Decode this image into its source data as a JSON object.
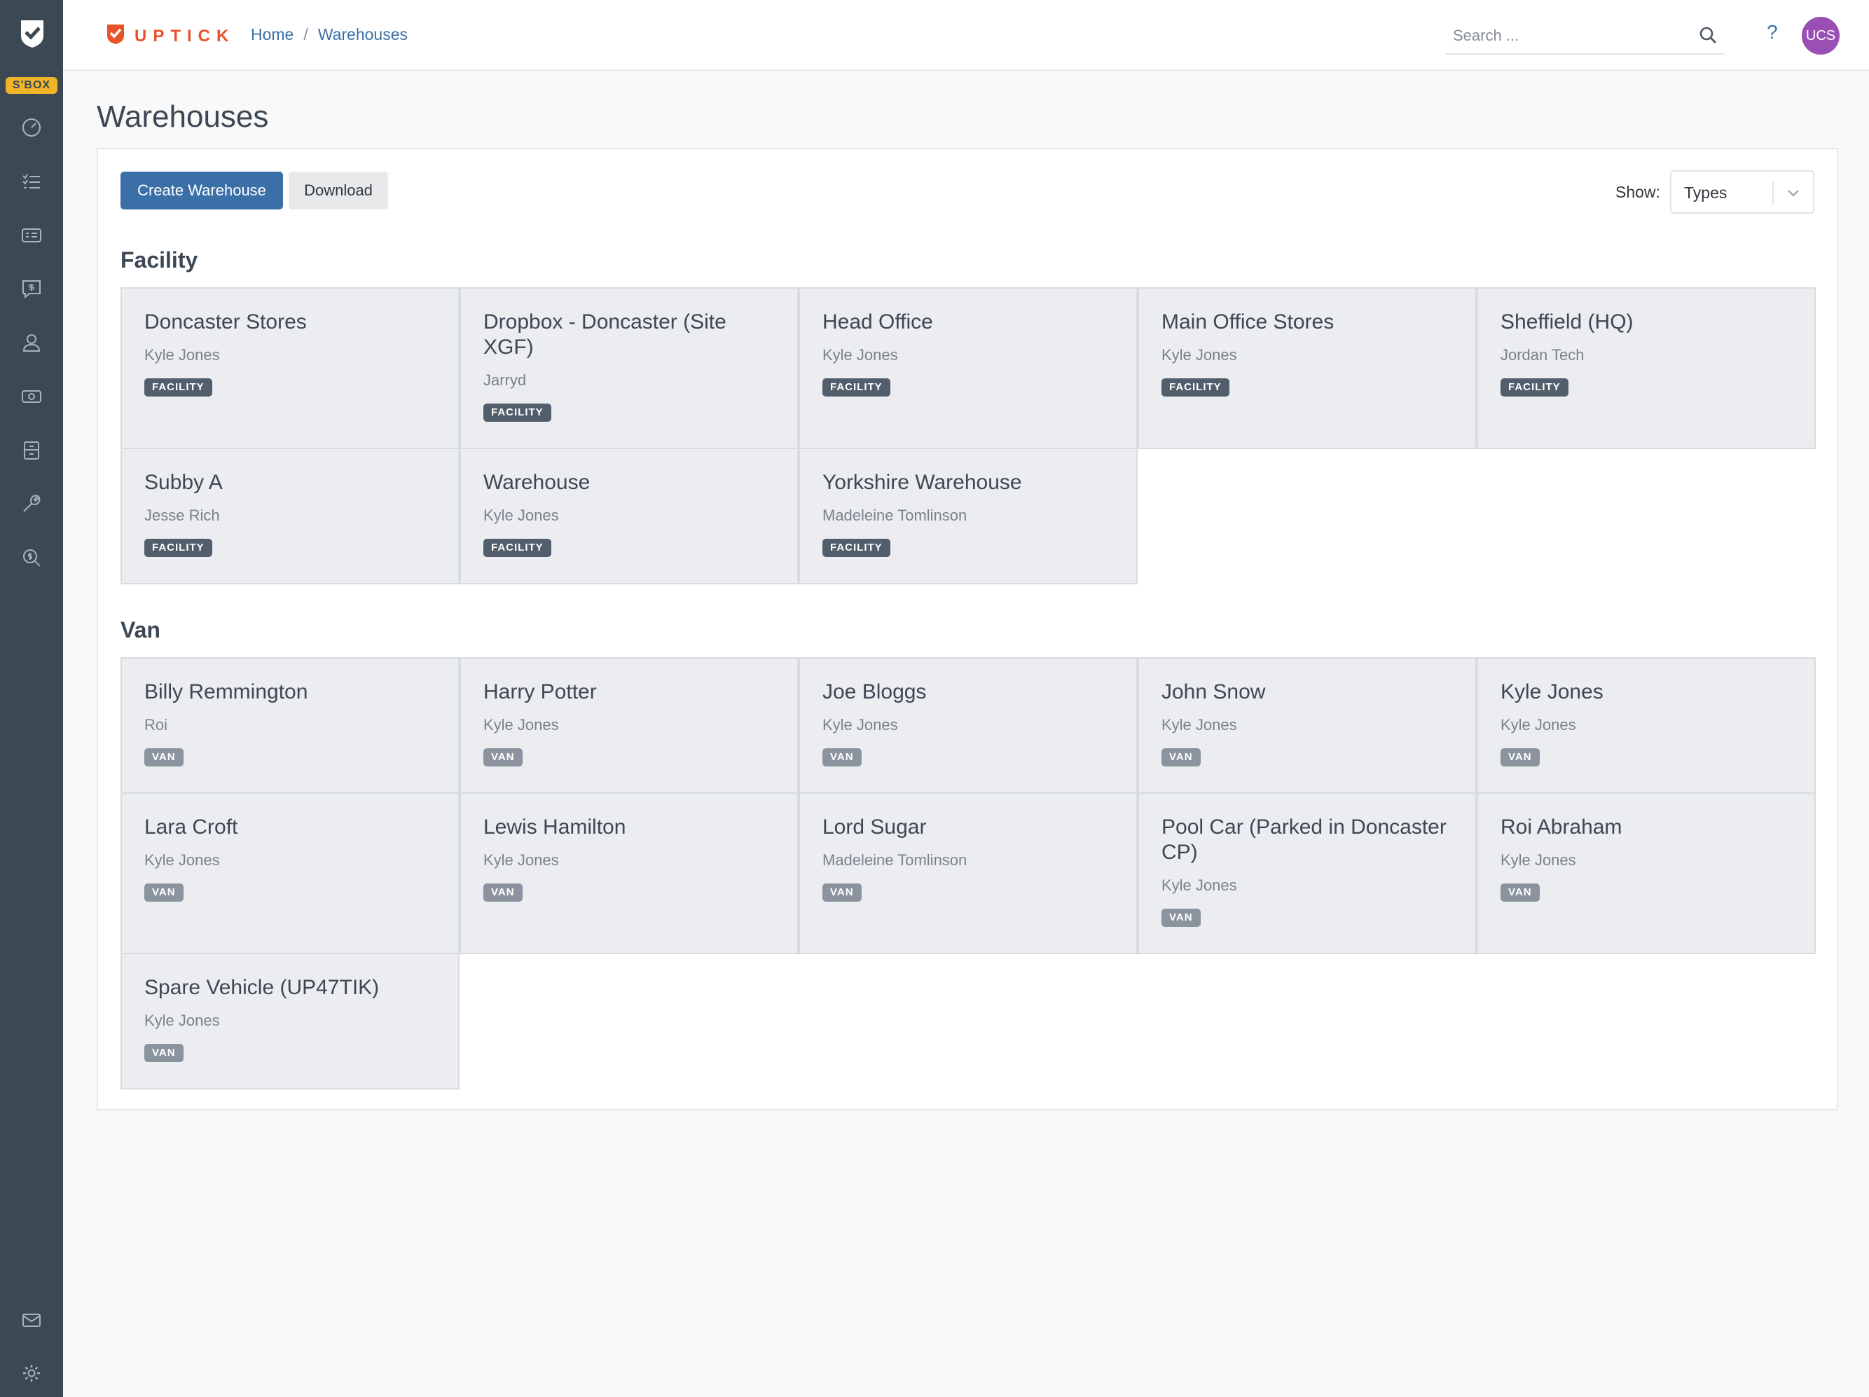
{
  "app": {
    "sandbox_badge": "S'BOX",
    "brand": "UPTICK"
  },
  "breadcrumb": {
    "home": "Home",
    "separator": "/",
    "current": "Warehouses"
  },
  "search": {
    "placeholder": "Search ..."
  },
  "header": {
    "help": "?",
    "avatar": "UCS"
  },
  "page": {
    "title": "Warehouses"
  },
  "toolbar": {
    "create_label": "Create Warehouse",
    "download_label": "Download",
    "show_label": "Show:",
    "show_value": "Types"
  },
  "groups": {
    "facility": {
      "title": "Facility",
      "items": [
        {
          "name": "Doncaster Stores",
          "owner": "Kyle Jones",
          "type": "FACILITY"
        },
        {
          "name": "Dropbox - Doncaster (Site XGF)",
          "owner": "Jarryd",
          "type": "FACILITY"
        },
        {
          "name": "Head Office",
          "owner": "Kyle Jones",
          "type": "FACILITY"
        },
        {
          "name": "Main Office Stores",
          "owner": "Kyle Jones",
          "type": "FACILITY"
        },
        {
          "name": "Sheffield (HQ)",
          "owner": "Jordan Tech",
          "type": "FACILITY"
        },
        {
          "name": "Subby A",
          "owner": "Jesse Rich",
          "type": "FACILITY"
        },
        {
          "name": "Warehouse",
          "owner": "Kyle Jones",
          "type": "FACILITY"
        },
        {
          "name": "Yorkshire Warehouse",
          "owner": "Madeleine Tomlinson",
          "type": "FACILITY"
        }
      ]
    },
    "van": {
      "title": "Van",
      "items": [
        {
          "name": "Billy Remmington",
          "owner": "Roi",
          "type": "VAN"
        },
        {
          "name": "Harry Potter",
          "owner": "Kyle Jones",
          "type": "VAN"
        },
        {
          "name": "Joe Bloggs",
          "owner": "Kyle Jones",
          "type": "VAN"
        },
        {
          "name": "John Snow",
          "owner": "Kyle Jones",
          "type": "VAN"
        },
        {
          "name": "Kyle Jones",
          "owner": "Kyle Jones",
          "type": "VAN"
        },
        {
          "name": "Lara Croft",
          "owner": "Kyle Jones",
          "type": "VAN"
        },
        {
          "name": "Lewis Hamilton",
          "owner": "Kyle Jones",
          "type": "VAN"
        },
        {
          "name": "Lord Sugar",
          "owner": "Madeleine Tomlinson",
          "type": "VAN"
        },
        {
          "name": "Pool Car (Parked in Doncaster CP)",
          "owner": "Kyle Jones",
          "type": "VAN"
        },
        {
          "name": "Roi Abraham",
          "owner": "Kyle Jones",
          "type": "VAN"
        },
        {
          "name": "Spare Vehicle (UP47TIK)",
          "owner": "Kyle Jones",
          "type": "VAN"
        }
      ]
    }
  },
  "colors": {
    "sidebar": "#3d4855",
    "primary": "#3b6fa8",
    "brand": "#e8532a",
    "sandbox": "#f0b429",
    "avatar": "#9a4fb5"
  },
  "sidebar_icons": [
    "dashboard-icon",
    "tasks-icon",
    "contacts-icon",
    "quotes-icon",
    "user-icon",
    "billing-icon",
    "storage-icon",
    "wrench-icon",
    "search-money-icon",
    "mail-icon",
    "settings-icon"
  ]
}
